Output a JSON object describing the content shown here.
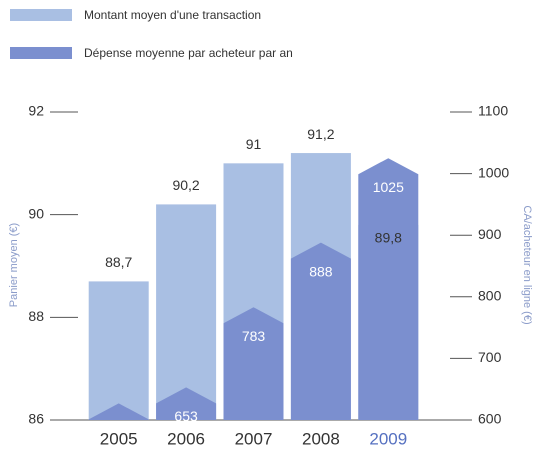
{
  "chart_data": {
    "type": "bar",
    "ylabel": "Panier moyen (€)",
    "y2label": "CA/acheteur en ligne (€)",
    "categories": [
      "2005",
      "2006",
      "2007",
      "2008",
      "2009"
    ],
    "category_colors": [
      "#333333",
      "#333333",
      "#333333",
      "#333333",
      "#5570c0"
    ],
    "series": [
      {
        "name": "Montant moyen d'une transaction",
        "color": "#a9bfe3",
        "values": [
          88.7,
          90.2,
          91,
          91.2,
          89.8
        ],
        "value_labels": [
          "88,7",
          "90,2",
          "91",
          "91,2",
          "89,8"
        ]
      },
      {
        "name": "Dépense moyenne par acheteur par an",
        "color": "#7b8fcf",
        "axis": "y2",
        "values": [
          627,
          653,
          783,
          888,
          1025
        ]
      }
    ],
    "ylim": [
      86,
      92
    ],
    "yticks": [
      86,
      88,
      90,
      92
    ],
    "y2lim": [
      600,
      1100
    ],
    "y2ticks": [
      600,
      700,
      800,
      900,
      1000,
      1100
    ]
  }
}
